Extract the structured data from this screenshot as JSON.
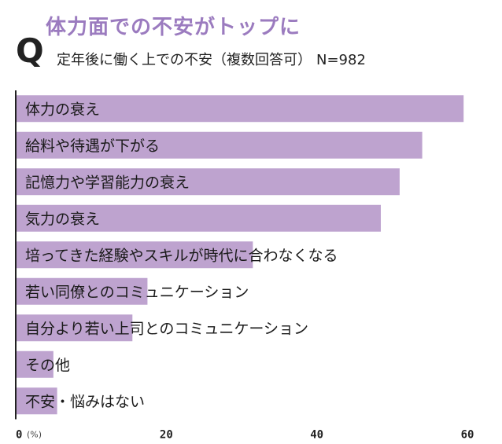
{
  "title": "体力面での不安がトップに",
  "q_mark": "Q",
  "question": "定年後に働く上での不安（複数回答可）",
  "sample": "N=982",
  "colors": {
    "bar": "#bea3cf",
    "title": "#9b7bbf",
    "axis": "#222222"
  },
  "chart_data": {
    "type": "bar",
    "orientation": "horizontal",
    "categories": [
      "体力の衰え",
      "給料や待遇が下がる",
      "記憶力や学習能力の衰え",
      "気力の衰え",
      "培ってきた経験やスキルが時代に合わなくなる",
      "若い同僚とのコミュニケーション",
      "自分より若い上司とのコミュニケーション",
      "その他",
      "不安・悩みはない"
    ],
    "values": [
      59.5,
      54.0,
      51.0,
      48.5,
      31.5,
      17.5,
      15.5,
      5.0,
      5.5
    ],
    "xlim": [
      0,
      60
    ],
    "xticks": [
      0,
      20,
      40,
      60
    ],
    "xtick_labels": [
      "0",
      "20",
      "40",
      "60"
    ],
    "unit_label": "(%)",
    "title": "体力面での不安がトップに"
  }
}
